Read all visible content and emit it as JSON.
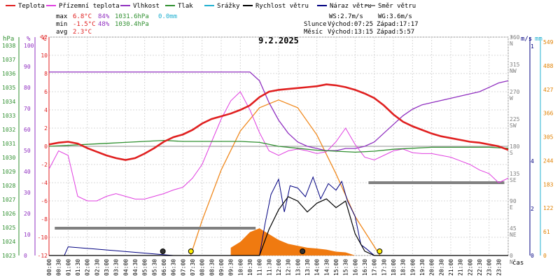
{
  "chart_data": {
    "type": "line",
    "title": "9.2.2025",
    "legend": [
      {
        "name": "Teplota",
        "color": "#e02020"
      },
      {
        "name": "Přízemní teplota",
        "color": "#e040e0"
      },
      {
        "name": "Vlhkost",
        "color": "#9030c0"
      },
      {
        "name": "Tlak",
        "color": "#309030"
      },
      {
        "name": "Srážky",
        "color": "#20b0d0"
      },
      {
        "name": "Rychlost větru",
        "color": "#000000"
      },
      {
        "name": "Náraz větru",
        "color": "#000080"
      },
      {
        "name": "Směr větru",
        "color": "#808080"
      }
    ],
    "stats": {
      "max_label": "max",
      "max_temp": "6.8°C",
      "max_hum": "84%",
      "max_press": "1031.6hPa",
      "max_rain": "0.0mm",
      "min_label": "min",
      "min_temp": "-1.5°C",
      "min_hum": "48%",
      "min_press": "1030.4hPa",
      "avg_label": "avg",
      "avg_temp": "2.3°C"
    },
    "wind_info": {
      "ws": "WS:2.7m/s",
      "wg": "WG:3.6m/s"
    },
    "sun_info": {
      "label": "Slunce",
      "rise": "Východ:07:25",
      "set": "Západ:17:17"
    },
    "moon_info": {
      "label": "Měsíc",
      "rise": "Východ:13:15",
      "set": "Západ:5:57"
    },
    "axes": {
      "hpa_unit": "hPa",
      "pct_unit": "%",
      "c_unit": "°C",
      "deg_unit": "°",
      "ms_unit": "m/s",
      "mm_unit": "mm",
      "x_unit": "čas",
      "hpa_ticks": [
        "1038",
        "1037",
        "1036",
        "1035",
        "1034",
        "1033",
        "1032",
        "1031",
        "1030",
        "1029",
        "1028",
        "1027",
        "1026",
        "1025",
        "1024",
        "1023"
      ],
      "pct_ticks": [
        "100",
        "90",
        "80",
        "70",
        "60",
        "50",
        "40",
        "30",
        "20",
        "10",
        "0"
      ],
      "c_ticks": [
        "12",
        "10",
        "8",
        "6",
        "4",
        "2",
        "0",
        "-2",
        "-4",
        "-6",
        "-8",
        "-10",
        "-12"
      ],
      "dir_ticks": [
        "360\nN",
        "315\nNW",
        "270\nW",
        "225\nSW",
        "180\nS",
        "135\nSE",
        "90\nE",
        "45\nNE",
        "0\nN"
      ],
      "ms_ticks": [
        "1",
        "4",
        "2",
        "0"
      ],
      "mm_ticks": [
        "549",
        "488",
        "427",
        "366",
        "305",
        "244",
        "183",
        "122",
        "61",
        "0"
      ],
      "x_ticks": [
        "00:00",
        "00:30",
        "01:00",
        "01:30",
        "02:00",
        "02:30",
        "03:00",
        "03:30",
        "04:00",
        "04:30",
        "05:00",
        "05:30",
        "06:00",
        "06:30",
        "07:00",
        "07:30",
        "08:00",
        "08:30",
        "09:00",
        "09:30",
        "10:00",
        "10:30",
        "11:00",
        "11:30",
        "12:00",
        "12:30",
        "13:00",
        "13:30",
        "14:00",
        "14:30",
        "15:00",
        "15:30",
        "16:00",
        "16:30",
        "17:00",
        "17:30",
        "18:00",
        "18:30",
        "19:00",
        "19:30",
        "20:00",
        "20:30",
        "21:00",
        "21:30",
        "22:00",
        "22:30",
        "23:00",
        "23:30"
      ]
    },
    "xlim": [
      0,
      24
    ],
    "temp_ylim": [
      -12,
      12
    ],
    "series": {
      "temperature": {
        "x": [
          0,
          0.5,
          1,
          1.5,
          2,
          2.5,
          3,
          3.5,
          4,
          4.5,
          5,
          5.5,
          6,
          6.5,
          7,
          7.5,
          8,
          8.5,
          9,
          9.5,
          10,
          10.5,
          11,
          11.5,
          12,
          12.5,
          13,
          13.5,
          14,
          14.5,
          15,
          15.5,
          16,
          16.5,
          17,
          17.5,
          18,
          18.5,
          19,
          19.5,
          20,
          20.5,
          21,
          21.5,
          22,
          22.5,
          23,
          23.5,
          24
        ],
        "y": [
          0.2,
          0.4,
          0.5,
          0.3,
          -0.2,
          -0.6,
          -1.0,
          -1.3,
          -1.5,
          -1.3,
          -0.8,
          -0.2,
          0.5,
          1.0,
          1.3,
          1.8,
          2.5,
          3.0,
          3.3,
          3.6,
          4.0,
          4.5,
          5.4,
          6.0,
          6.2,
          6.3,
          6.4,
          6.5,
          6.6,
          6.8,
          6.7,
          6.5,
          6.2,
          5.8,
          5.3,
          4.5,
          3.5,
          2.7,
          2.2,
          1.8,
          1.4,
          1.1,
          0.9,
          0.7,
          0.5,
          0.4,
          0.2,
          0.0,
          -0.4
        ]
      },
      "ground_temperature": {
        "x": [
          0,
          0.5,
          1,
          1.5,
          2,
          2.5,
          3,
          3.5,
          4,
          4.5,
          5,
          5.5,
          6,
          6.5,
          7,
          7.5,
          8,
          8.5,
          9,
          9.5,
          10,
          10.5,
          11,
          11.5,
          12,
          12.5,
          13,
          13.5,
          14,
          14.5,
          15,
          15.5,
          16,
          16.5,
          17,
          17.5,
          18,
          18.5,
          19,
          19.5,
          20,
          20.5,
          21,
          21.5,
          22,
          22.5,
          23,
          23.5,
          24
        ],
        "y": [
          -2.5,
          -0.5,
          -1.0,
          -5.5,
          -6.0,
          -6.0,
          -5.5,
          -5.2,
          -5.5,
          -5.8,
          -5.8,
          -5.5,
          -5.2,
          -4.8,
          -4.5,
          -3.5,
          -2.0,
          0.5,
          3.0,
          5.0,
          6.0,
          4.0,
          1.5,
          -0.5,
          -1.0,
          -0.5,
          -0.3,
          -0.5,
          -0.8,
          -0.6,
          0.5,
          2.0,
          0.2,
          -1.2,
          -1.5,
          -1.0,
          -0.5,
          -0.3,
          -0.7,
          -0.8,
          -0.8,
          -1.0,
          -1.2,
          -1.6,
          -2.0,
          -2.6,
          -3.0,
          -4.0,
          -3.5
        ]
      },
      "humidity": {
        "x": [
          0,
          0.5,
          1,
          1.5,
          2,
          2.5,
          3,
          3.5,
          4,
          4.5,
          5,
          5.5,
          6,
          6.5,
          7,
          7.5,
          8,
          8.5,
          9,
          9.5,
          10,
          10.5,
          11,
          11.5,
          12,
          12.5,
          13,
          13.5,
          14,
          14.5,
          15,
          15.5,
          16,
          16.5,
          17,
          17.5,
          18,
          18.5,
          19,
          19.5,
          20,
          20.5,
          21,
          21.5,
          22,
          22.5,
          23,
          23.5,
          24
        ],
        "y": [
          84,
          84,
          84,
          84,
          84,
          84,
          84,
          84,
          84,
          84,
          84,
          84,
          84,
          84,
          84,
          84,
          84,
          84,
          84,
          84,
          84,
          84,
          80,
          70,
          62,
          56,
          52,
          50,
          49,
          48,
          48,
          49,
          49,
          50,
          52,
          56,
          60,
          64,
          67,
          69,
          70,
          71,
          72,
          73,
          74,
          75,
          77,
          79,
          80
        ]
      },
      "pressure": {
        "x": [
          0,
          1,
          2,
          3,
          4,
          5,
          6,
          7,
          8,
          9,
          10,
          11,
          12,
          13,
          14,
          15,
          16,
          17,
          18,
          19,
          20,
          21,
          22,
          23,
          24
        ],
        "y": [
          1031.0,
          1031.1,
          1031.2,
          1031.3,
          1031.4,
          1031.5,
          1031.6,
          1031.5,
          1031.5,
          1031.5,
          1031.5,
          1031.4,
          1031.0,
          1030.8,
          1030.6,
          1030.5,
          1030.4,
          1030.5,
          1030.7,
          1030.8,
          1030.9,
          1030.9,
          1030.9,
          1030.9,
          1030.8
        ]
      },
      "wind_speed": {
        "x": [
          0,
          7,
          11,
          11.5,
          12,
          12.5,
          13,
          13.5,
          14,
          14.5,
          15,
          15.5,
          16,
          16.5,
          17,
          24
        ],
        "y": [
          0,
          0,
          0,
          1.2,
          2.1,
          2.7,
          2.5,
          2.0,
          2.4,
          2.6,
          2.2,
          2.5,
          1.0,
          0.2,
          0,
          0
        ]
      },
      "wind_gust": {
        "x": [
          0,
          0.8,
          1,
          6.5,
          7,
          11,
          11.3,
          11.6,
          12,
          12.3,
          12.6,
          13,
          13.4,
          13.8,
          14.2,
          14.6,
          15,
          15.3,
          15.6,
          16,
          16.3,
          16.6,
          17,
          24
        ],
        "y": [
          0,
          0,
          0.4,
          0,
          0,
          0,
          1.5,
          2.8,
          3.5,
          2.0,
          3.2,
          3.1,
          2.7,
          3.6,
          2.6,
          3.3,
          3.0,
          3.4,
          2.5,
          1.8,
          0.5,
          0.3,
          0,
          0
        ]
      },
      "wind_direction_avg": {
        "segments": [
          {
            "x0": 0.3,
            "x1": 10.8,
            "deg": 45
          },
          {
            "x0": 16.7,
            "x1": 23.8,
            "deg": 120
          }
        ]
      },
      "solar": {
        "x": [
          7.4,
          8,
          9,
          10,
          11,
          12,
          13,
          14,
          15,
          16,
          17.3
        ],
        "y": [
          0,
          90,
          220,
          320,
          380,
          400,
          380,
          310,
          210,
          100,
          0
        ]
      },
      "solar_radiation": {
        "x": [
          9.5,
          10,
          10.5,
          11,
          11.5,
          12,
          12.5,
          13,
          13.5,
          14,
          14.5,
          15,
          15.5,
          16
        ],
        "y": [
          20,
          35,
          60,
          70,
          55,
          40,
          30,
          25,
          20,
          18,
          15,
          10,
          8,
          0
        ]
      }
    }
  }
}
